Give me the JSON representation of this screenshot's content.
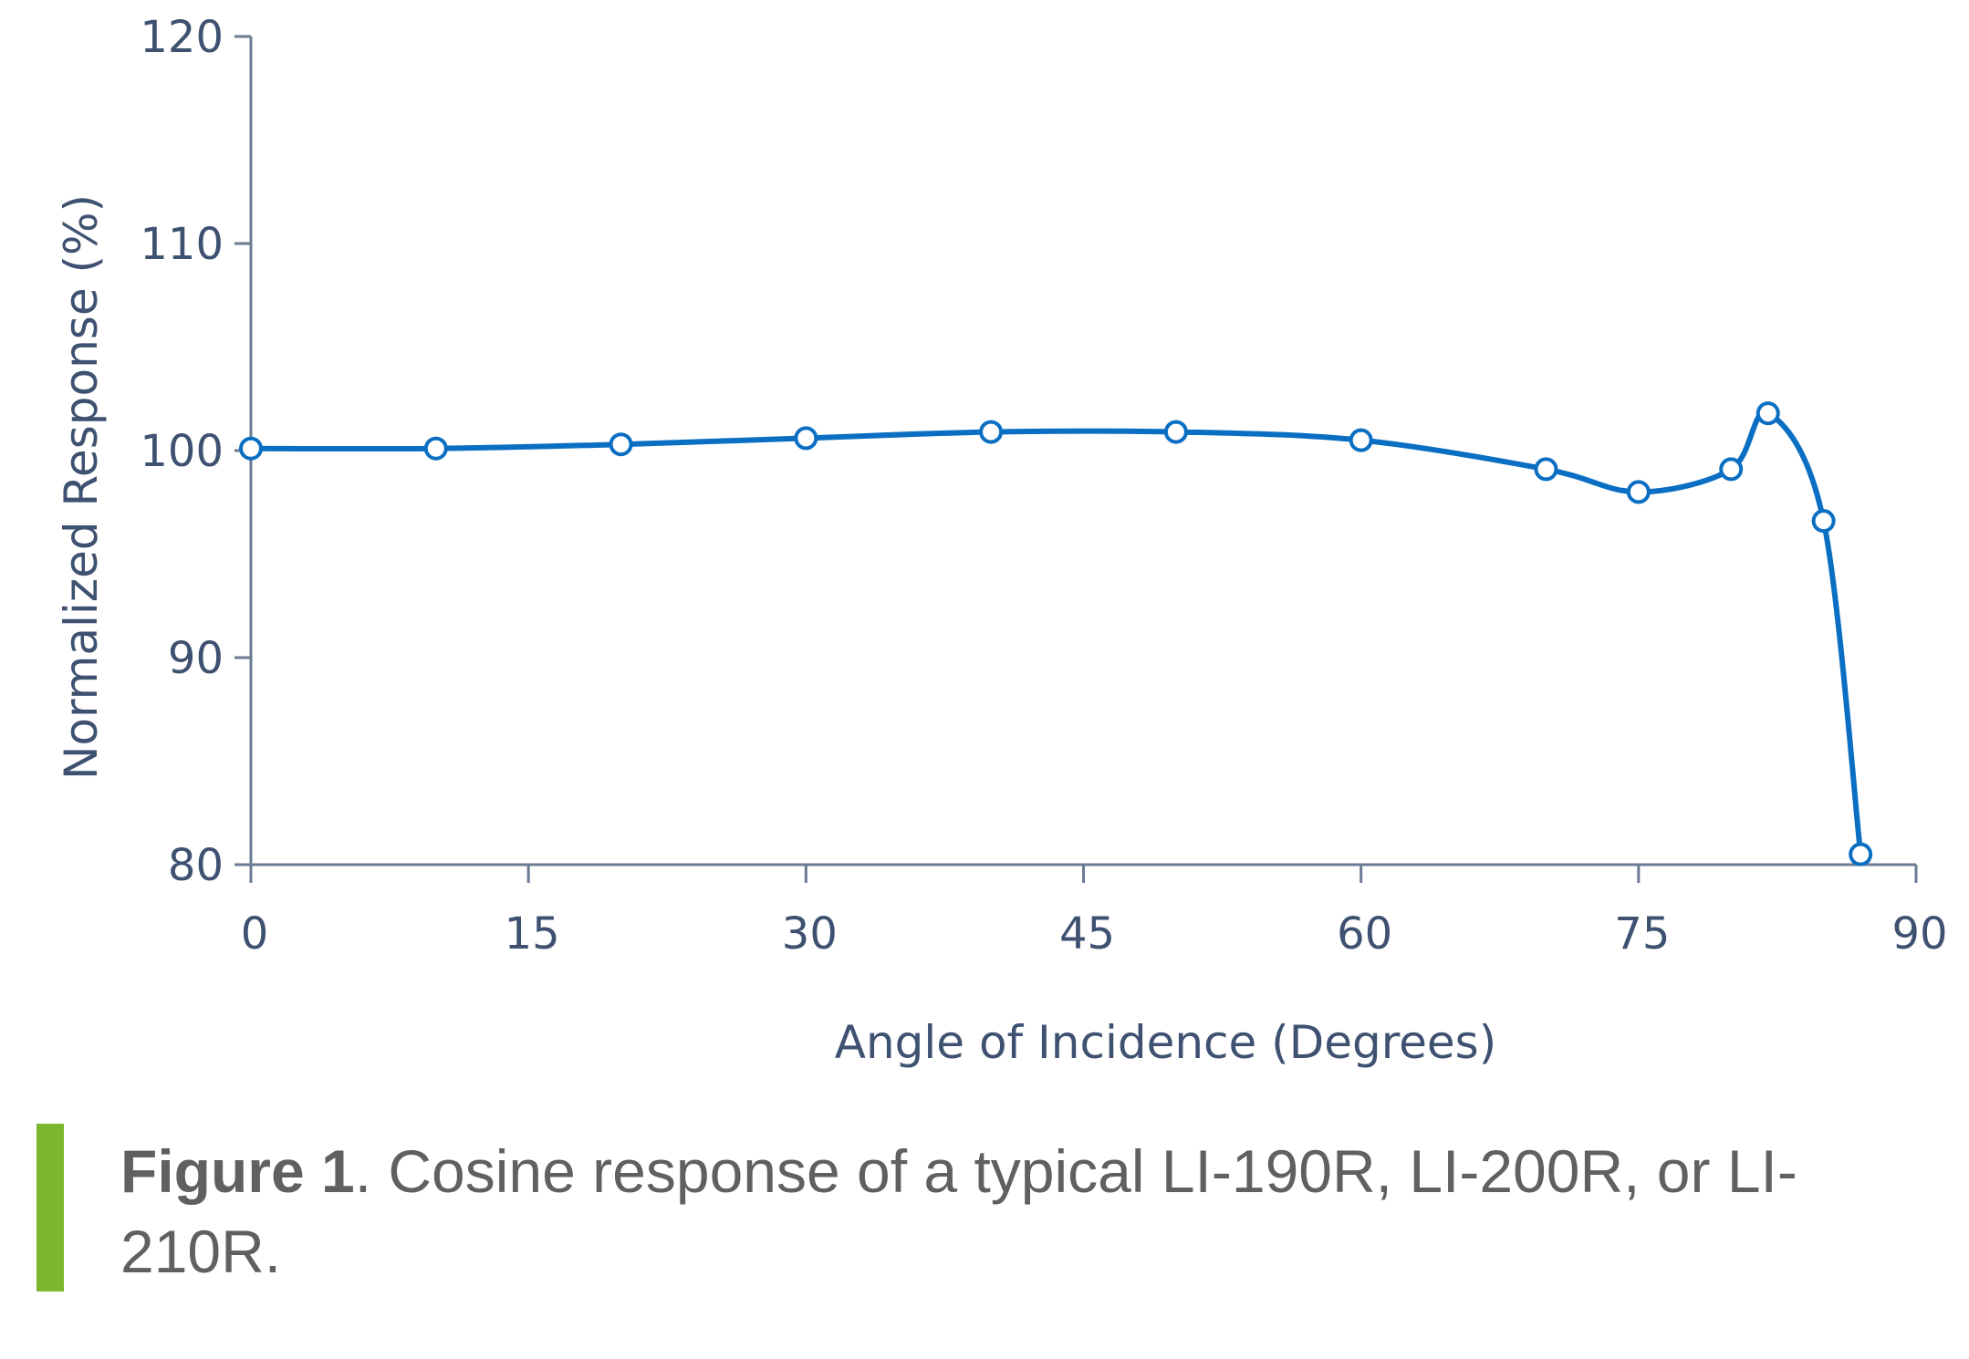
{
  "chart_data": {
    "type": "line",
    "xlabel": "Angle of Incidence (Degrees)",
    "ylabel": "Normalized Response (%)",
    "xlim": [
      0,
      90
    ],
    "ylim": [
      80,
      120
    ],
    "xticks": [
      0,
      15,
      30,
      45,
      60,
      75,
      90
    ],
    "yticks": [
      80,
      90,
      100,
      110,
      120
    ],
    "grid": false,
    "line_color": "#0a6fc2",
    "axis_color": "#6b7b93",
    "series": [
      {
        "x": [
          0,
          10,
          20,
          30,
          40,
          50,
          60,
          70,
          75,
          80,
          82,
          85,
          87
        ],
        "y": [
          100.1,
          100.1,
          100.3,
          100.6,
          100.9,
          100.9,
          100.5,
          99.1,
          98.0,
          99.1,
          101.8,
          96.6,
          80.5
        ]
      }
    ]
  },
  "caption": {
    "label": "Figure 1",
    "text": ". Cosine response of a typical LI-190R, LI-200R, or LI-210R."
  },
  "colors": {
    "caption_bar": "#7cb82f",
    "caption_text": "#5f6062",
    "tick_text": "#3e5170"
  }
}
